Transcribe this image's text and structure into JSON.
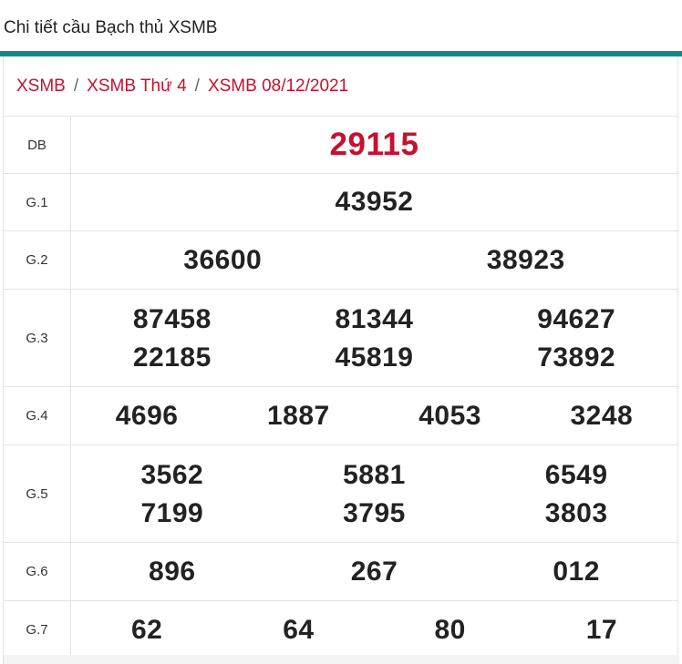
{
  "page": {
    "title": "Chi tiết cầu Bạch thủ XSMB"
  },
  "breadcrumb": [
    "XSMB",
    "XSMB Thứ 4",
    "XSMB 08/12/2021"
  ],
  "prizes": {
    "db": {
      "label": "DB",
      "numbers": [
        "29115"
      ]
    },
    "g1": {
      "label": "G.1",
      "numbers": [
        "43952"
      ]
    },
    "g2": {
      "label": "G.2",
      "numbers": [
        {
          "pre": "366",
          "hl": "00",
          "post": ""
        },
        {
          "pre": "3",
          "hl": "8",
          "post": "923"
        }
      ]
    },
    "g3": {
      "label": "G.3",
      "numbers": [
        {
          "pre": "87458",
          "hl": "",
          "post": ""
        },
        {
          "pre": "81344",
          "hl": "",
          "post": ""
        },
        {
          "pre": "",
          "hl": "9",
          "post": "4627"
        },
        {
          "pre": "22185",
          "hl": "",
          "post": ""
        },
        {
          "pre": "45819",
          "hl": "",
          "post": ""
        },
        {
          "pre": "73892",
          "hl": "",
          "post": ""
        }
      ]
    },
    "g4": {
      "label": "G.4",
      "numbers": [
        "4696",
        "1887",
        "4053",
        "3248"
      ]
    },
    "g5": {
      "label": "G.5",
      "numbers": [
        "3562",
        "5881",
        "6549",
        "7199",
        "3795",
        "3803"
      ]
    },
    "g6": {
      "label": "G.6",
      "numbers": [
        "896",
        "267",
        "012"
      ]
    },
    "g7": {
      "label": "G.7",
      "numbers": [
        "62",
        "64",
        "80",
        "17"
      ]
    }
  },
  "colors": {
    "accent_bar": "#0e8a86",
    "red": "#c8102e",
    "orange": "#f2a31a"
  }
}
